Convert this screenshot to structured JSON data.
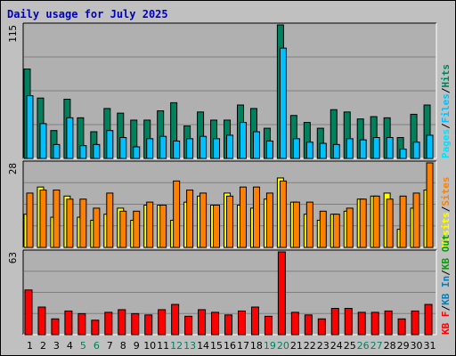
{
  "title": "Daily usage for July 2025",
  "colors": {
    "background": "#c0c0c0",
    "plot": "#b0b0b0",
    "hits": "#00805c",
    "files": "#00c0ff",
    "pages": "#00e0ff",
    "visits": "#ffff00",
    "sites": "#ff8000",
    "kb": "#ff0000",
    "kb_in": "#0080c0",
    "kb_out": "#00a000",
    "weekend": "#00805c",
    "text": "#000000",
    "title": "#0000c0"
  },
  "chart_data": [
    {
      "type": "bar",
      "panel": "top",
      "ymax_label": "115",
      "ylim": [
        0,
        115
      ],
      "legend": [
        "Pages",
        "/",
        "Files",
        "/",
        "Hits"
      ],
      "categories": [
        "1",
        "2",
        "3",
        "4",
        "5",
        "6",
        "7",
        "8",
        "9",
        "10",
        "11",
        "12",
        "13",
        "14",
        "15",
        "16",
        "17",
        "18",
        "19",
        "20",
        "21",
        "22",
        "23",
        "24",
        "25",
        "26",
        "27",
        "28",
        "29",
        "30",
        "31"
      ],
      "weekend_days": [
        "5",
        "6",
        "12",
        "13",
        "19",
        "20",
        "26",
        "27"
      ],
      "series": [
        {
          "name": "Hits",
          "values": [
            77,
            52,
            24,
            51,
            35,
            23,
            43,
            39,
            33,
            33,
            41,
            48,
            28,
            40,
            33,
            33,
            46,
            43,
            26,
            115,
            37,
            31,
            26,
            42,
            40,
            34,
            36,
            35,
            18,
            38,
            46
          ]
        },
        {
          "name": "Files",
          "values": [
            54,
            30,
            12,
            35,
            11,
            12,
            24,
            18,
            10,
            17,
            19,
            15,
            17,
            19,
            17,
            20,
            31,
            23,
            15,
            95,
            17,
            14,
            13,
            12,
            17,
            16,
            18,
            18,
            8,
            14,
            20
          ]
        }
      ]
    },
    {
      "type": "bar",
      "panel": "middle",
      "ymax_label": "28",
      "ylim": [
        0,
        28
      ],
      "legend": [
        "Visits",
        "/",
        "Sites"
      ],
      "categories": [
        "1",
        "2",
        "3",
        "4",
        "5",
        "6",
        "7",
        "8",
        "9",
        "10",
        "11",
        "12",
        "13",
        "14",
        "15",
        "16",
        "17",
        "18",
        "19",
        "20",
        "21",
        "22",
        "23",
        "24",
        "25",
        "26",
        "27",
        "28",
        "29",
        "30",
        "31"
      ],
      "series": [
        {
          "name": "Visits",
          "values": [
            11,
            20,
            10,
            17,
            10,
            9,
            11,
            13,
            9,
            14,
            14,
            9,
            15,
            17,
            14,
            18,
            14,
            13,
            16,
            23,
            15,
            11,
            9,
            11,
            12,
            16,
            17,
            18,
            6,
            13,
            19
          ]
        },
        {
          "name": "Sites",
          "values": [
            18,
            19,
            19,
            16,
            16,
            13,
            18,
            12,
            12,
            15,
            14,
            22,
            19,
            18,
            14,
            17,
            20,
            20,
            18,
            22,
            15,
            15,
            12,
            11,
            13,
            16,
            17,
            16,
            17,
            18,
            28
          ]
        }
      ]
    },
    {
      "type": "bar",
      "panel": "bottom",
      "ymax_label": "63",
      "ylim": [
        0,
        63
      ],
      "legend": [
        "KB F",
        "/",
        "KB In",
        "/",
        "KB Out"
      ],
      "categories": [
        "1",
        "2",
        "3",
        "4",
        "5",
        "6",
        "7",
        "8",
        "9",
        "10",
        "11",
        "12",
        "13",
        "14",
        "15",
        "16",
        "17",
        "18",
        "19",
        "20",
        "21",
        "22",
        "23",
        "24",
        "25",
        "26",
        "27",
        "28",
        "29",
        "30",
        "31"
      ],
      "series": [
        {
          "name": "KB F",
          "values": [
            34,
            21,
            12,
            18,
            16,
            11,
            17,
            19,
            16,
            15,
            19,
            23,
            14,
            19,
            17,
            15,
            18,
            21,
            14,
            63,
            17,
            15,
            12,
            20,
            20,
            17,
            17,
            18,
            12,
            18,
            23
          ]
        }
      ]
    }
  ]
}
